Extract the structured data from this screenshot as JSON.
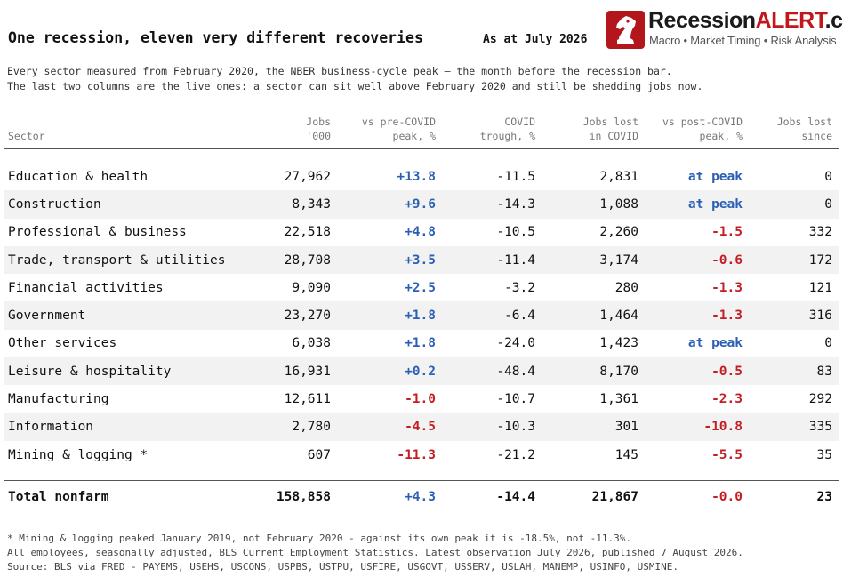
{
  "header": {
    "title": "One recession, eleven very different recoveries",
    "as_of": "As at July 2026",
    "subtitle_line1": "Every sector measured from February 2020, the NBER business-cycle peak — the month before the recession bar.",
    "subtitle_line2": "The last two columns are the live ones: a sector can sit well above February 2020 and still be shedding jobs now."
  },
  "logo": {
    "name_part1": "Recession",
    "name_part2": "ALERT",
    "name_part3": ".com",
    "tagline": "Macro • Market Timing • Risk Analysis",
    "icon": "knight-chess-icon",
    "brand_color": "#b3161b"
  },
  "columns": [
    {
      "line1": "",
      "line2": "Sector"
    },
    {
      "line1": "Jobs",
      "line2": "'000"
    },
    {
      "line1": "vs pre-COVID",
      "line2": "peak, %"
    },
    {
      "line1": "COVID",
      "line2": "trough, %"
    },
    {
      "line1": "Jobs lost",
      "line2": "in COVID"
    },
    {
      "line1": "vs post-COVID",
      "line2": "peak, %"
    },
    {
      "line1": "Jobs lost",
      "line2": "since"
    }
  ],
  "rows": [
    {
      "sector": "Education & health",
      "jobs": "27,962",
      "pre": "+13.8",
      "trough": "-11.5",
      "lost_covid": "2,831",
      "post": "at peak",
      "lost_since": "0"
    },
    {
      "sector": "Construction",
      "jobs": "8,343",
      "pre": "+9.6",
      "trough": "-14.3",
      "lost_covid": "1,088",
      "post": "at peak",
      "lost_since": "0"
    },
    {
      "sector": "Professional & business",
      "jobs": "22,518",
      "pre": "+4.8",
      "trough": "-10.5",
      "lost_covid": "2,260",
      "post": "-1.5",
      "lost_since": "332"
    },
    {
      "sector": "Trade, transport & utilities",
      "jobs": "28,708",
      "pre": "+3.5",
      "trough": "-11.4",
      "lost_covid": "3,174",
      "post": "-0.6",
      "lost_since": "172"
    },
    {
      "sector": "Financial activities",
      "jobs": "9,090",
      "pre": "+2.5",
      "trough": "-3.2",
      "lost_covid": "280",
      "post": "-1.3",
      "lost_since": "121"
    },
    {
      "sector": "Government",
      "jobs": "23,270",
      "pre": "+1.8",
      "trough": "-6.4",
      "lost_covid": "1,464",
      "post": "-1.3",
      "lost_since": "316"
    },
    {
      "sector": "Other services",
      "jobs": "6,038",
      "pre": "+1.8",
      "trough": "-24.0",
      "lost_covid": "1,423",
      "post": "at peak",
      "lost_since": "0"
    },
    {
      "sector": "Leisure & hospitality",
      "jobs": "16,931",
      "pre": "+0.2",
      "trough": "-48.4",
      "lost_covid": "8,170",
      "post": "-0.5",
      "lost_since": "83"
    },
    {
      "sector": "Manufacturing",
      "jobs": "12,611",
      "pre": "-1.0",
      "trough": "-10.7",
      "lost_covid": "1,361",
      "post": "-2.3",
      "lost_since": "292"
    },
    {
      "sector": "Information",
      "jobs": "2,780",
      "pre": "-4.5",
      "trough": "-10.3",
      "lost_covid": "301",
      "post": "-10.8",
      "lost_since": "335"
    },
    {
      "sector": "Mining & logging *",
      "jobs": "607",
      "pre": "-11.3",
      "trough": "-21.2",
      "lost_covid": "145",
      "post": "-5.5",
      "lost_since": "35"
    }
  ],
  "total": {
    "sector": "Total nonfarm",
    "jobs": "158,858",
    "pre": "+4.3",
    "trough": "-14.4",
    "lost_covid": "21,867",
    "post": "-0.0",
    "lost_since": "23"
  },
  "footer": {
    "line1": "* Mining & logging peaked January 2019, not February 2020 - against its own peak it is -18.5%, not -11.3%.",
    "line2": "All employees, seasonally adjusted, BLS Current Employment Statistics. Latest observation July 2026, published 7 August 2026.",
    "line3": "Source: BLS via FRED - PAYEMS, USEHS, USCONS, USPBS, USTPU, USFIRE, USGOVT, USSERV, USLAH, MANEMP, USINFO, USMINE."
  },
  "colors": {
    "positive": "#2b5fb4",
    "negative": "#c41e24",
    "alt_row": "#f2f2f2"
  }
}
